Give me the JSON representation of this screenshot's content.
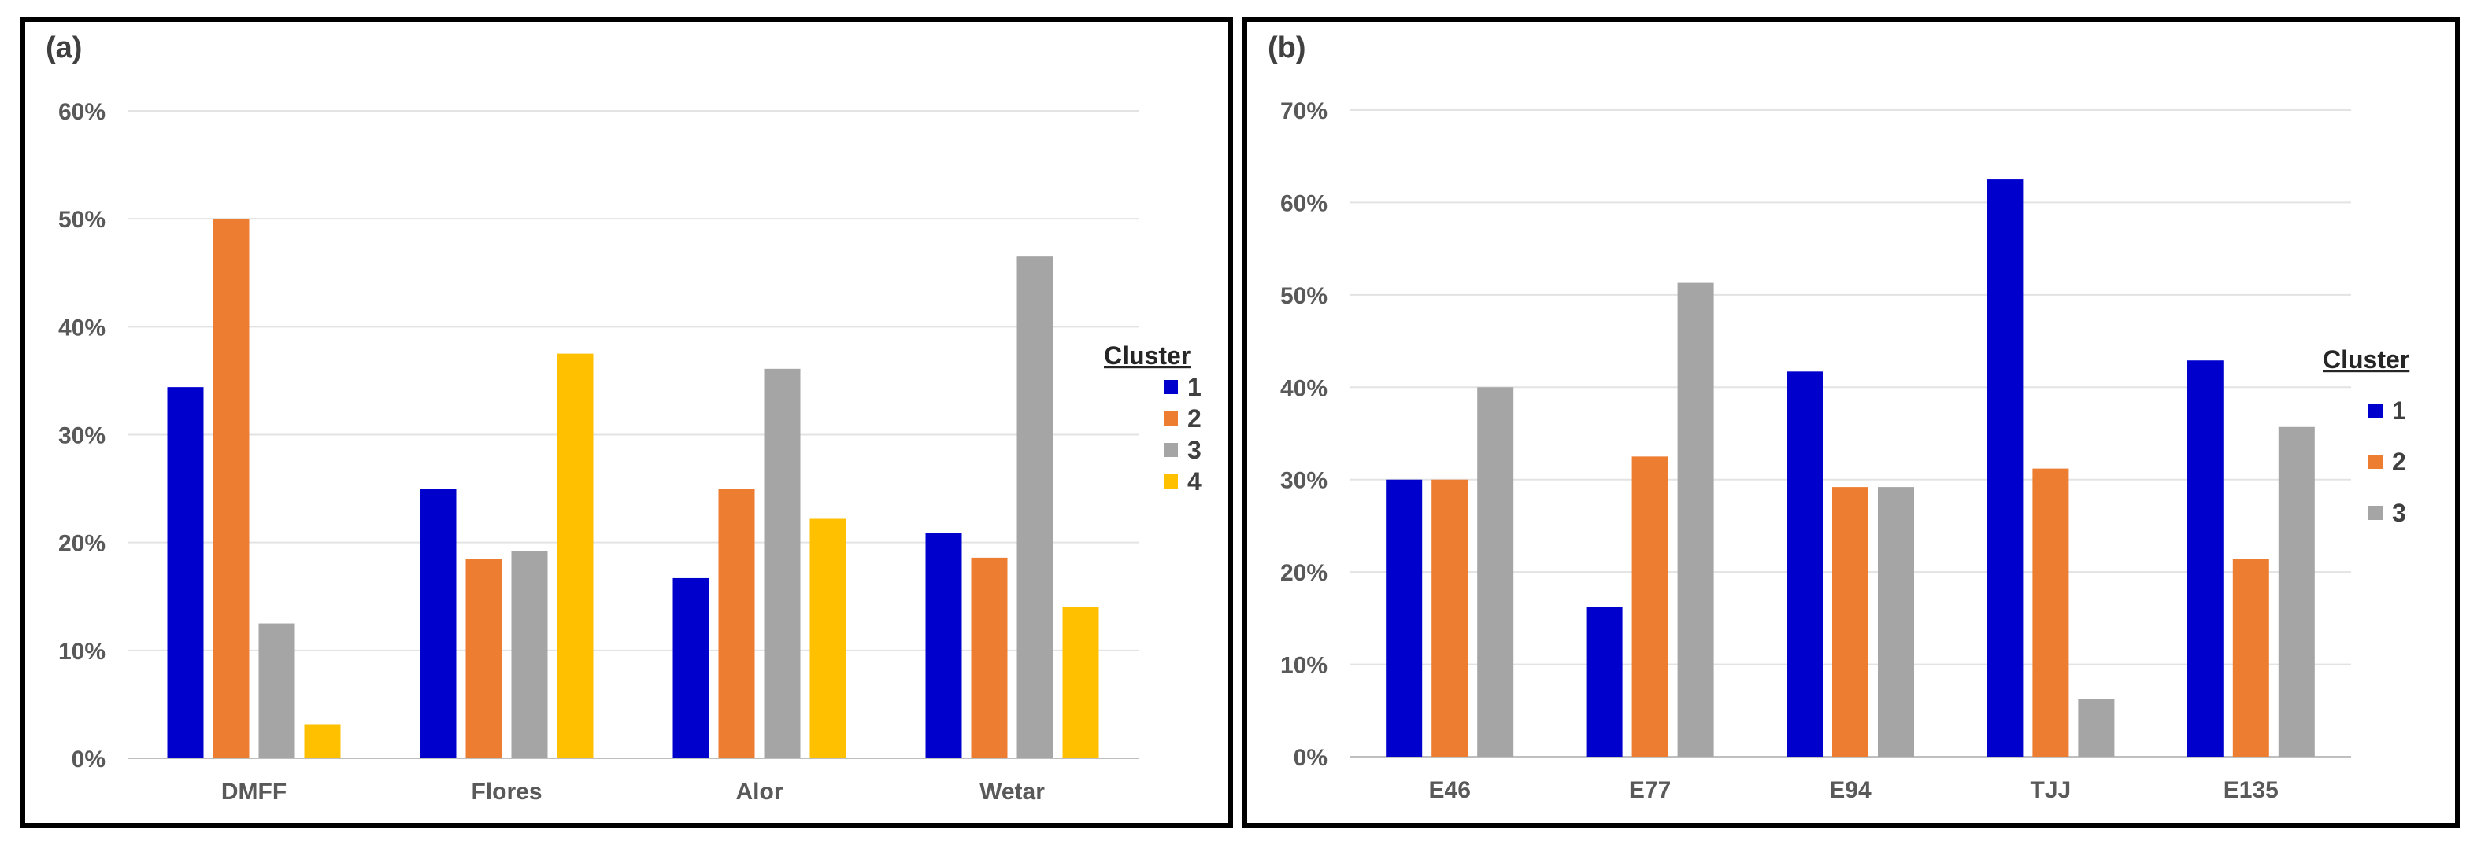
{
  "chart_data": [
    {
      "panel_label": "(a)",
      "type": "bar",
      "categories": [
        "DMFF",
        "Flores",
        "Alor",
        "Wetar"
      ],
      "ylim": [
        0,
        60
      ],
      "yticks": [
        "0%",
        "10%",
        "20%",
        "30%",
        "40%",
        "50%",
        "60%"
      ],
      "legend_title": "Cluster",
      "series": [
        {
          "name": "1",
          "color": "#0000CC",
          "values": [
            34.4,
            25.0,
            16.7,
            20.9
          ]
        },
        {
          "name": "2",
          "color": "#ED7D31",
          "values": [
            50.0,
            18.5,
            25.0,
            18.6
          ]
        },
        {
          "name": "3",
          "color": "#A5A5A5",
          "values": [
            12.5,
            19.2,
            36.1,
            46.5
          ]
        },
        {
          "name": "4",
          "color": "#FFC000",
          "values": [
            3.1,
            37.5,
            22.2,
            14.0
          ]
        }
      ]
    },
    {
      "panel_label": "(b)",
      "type": "bar",
      "categories": [
        "E46",
        "E77",
        "E94",
        "TJJ",
        "E135"
      ],
      "ylim": [
        0,
        70
      ],
      "yticks": [
        "0%",
        "10%",
        "20%",
        "30%",
        "40%",
        "50%",
        "60%",
        "70%"
      ],
      "legend_title": "Cluster",
      "series": [
        {
          "name": "1",
          "color": "#0000CC",
          "values": [
            30.0,
            16.2,
            41.7,
            62.5,
            42.9
          ]
        },
        {
          "name": "2",
          "color": "#ED7D31",
          "values": [
            30.0,
            32.5,
            29.2,
            31.2,
            21.4
          ]
        },
        {
          "name": "3",
          "color": "#A5A5A5",
          "values": [
            40.0,
            51.3,
            29.2,
            6.3,
            35.7
          ]
        }
      ]
    }
  ]
}
